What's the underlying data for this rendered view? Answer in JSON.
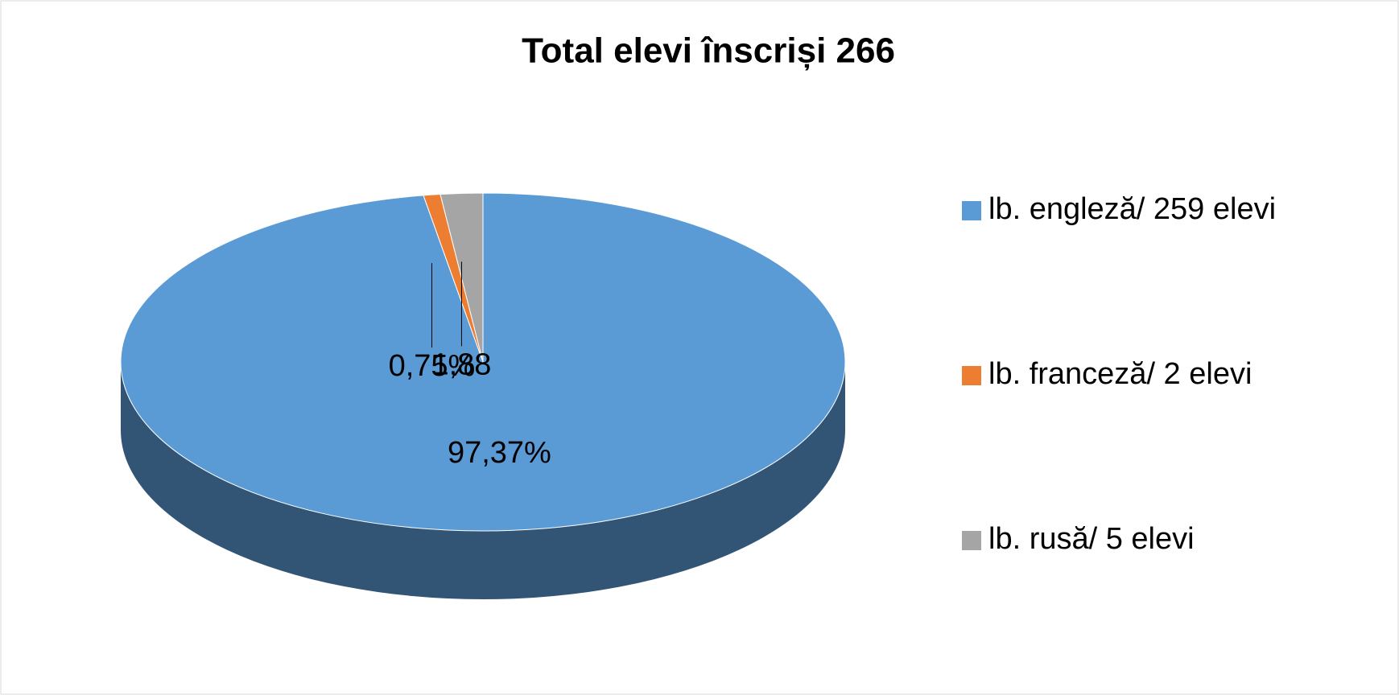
{
  "chart_data": {
    "type": "pie",
    "title": "Total elevi înscriși 266",
    "categories": [
      "lb. engleză/ 259 elevi",
      "lb. franceză/ 2 elevi",
      "lb. rusă/ 5 elevi"
    ],
    "values": [
      97.37,
      0.75,
      1.88
    ],
    "value_labels": [
      "97,37%",
      "0,75%",
      "1,88"
    ],
    "colors": [
      "#5b9bd5",
      "#ed7d31",
      "#a5a5a5"
    ],
    "legend": "right"
  }
}
